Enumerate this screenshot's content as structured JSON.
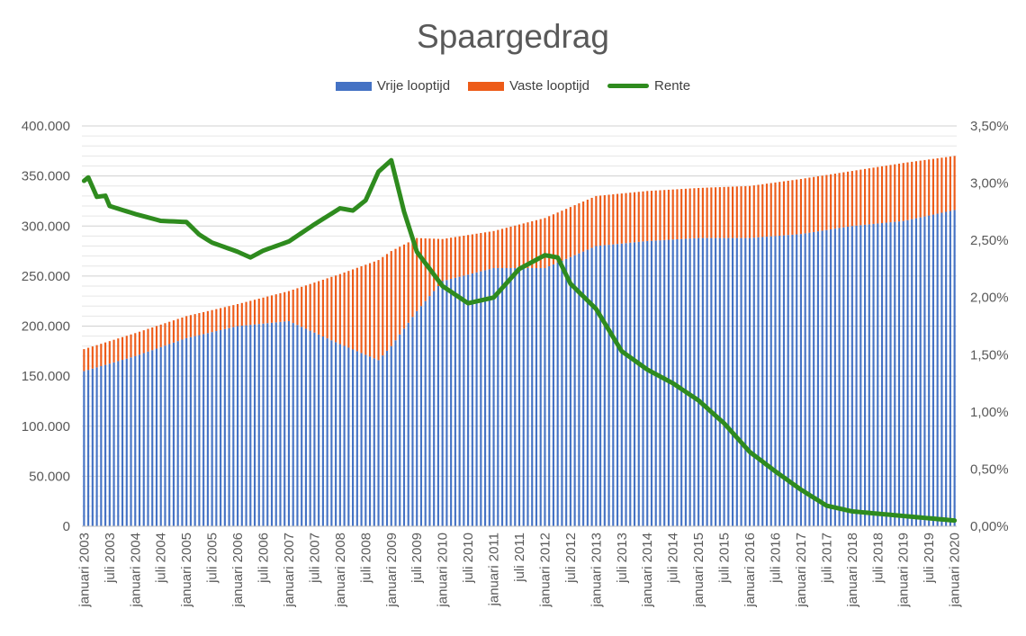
{
  "chart_data": {
    "type": "bar",
    "title": "Spaargedrag",
    "legend": {
      "position": "top",
      "items": [
        {
          "name": "Vrije looptijd",
          "color": "#4472c4",
          "kind": "bar"
        },
        {
          "name": "Vaste looptijd",
          "color": "#ed5b18",
          "kind": "bar"
        },
        {
          "name": "Rente",
          "color": "#2e8b1e",
          "kind": "line"
        }
      ]
    },
    "grid": true,
    "stacked": true,
    "y_left": {
      "ylim": [
        0,
        400000
      ],
      "ticks": [
        "0",
        "50.000",
        "100.000",
        "150.000",
        "200.000",
        "250.000",
        "300.000",
        "350.000",
        "400.000"
      ]
    },
    "y_right": {
      "ylim": [
        0,
        3.5
      ],
      "ticks": [
        "0,00%",
        "0,50%",
        "1,00%",
        "1,50%",
        "2,00%",
        "2,50%",
        "3,00%",
        "3,50%"
      ]
    },
    "x_start": "januari 2003",
    "x_end": "januari 2020",
    "x_tick_labels": [
      "januari 2003",
      "juli 2003",
      "januari 2004",
      "juli 2004",
      "januari 2005",
      "juli 2005",
      "januari 2006",
      "juli 2006",
      "januari 2007",
      "juli 2007",
      "januari 2008",
      "juli 2008",
      "januari 2009",
      "juli 2009",
      "januari 2010",
      "juli 2010",
      "januari 2011",
      "juli 2011",
      "januari 2012",
      "juli 2012",
      "januari 2013",
      "juli 2013",
      "januari 2014",
      "juli 2014",
      "januari 2015",
      "juli 2015",
      "januari 2016",
      "juli 2016",
      "januari 2017",
      "juli 2017",
      "januari 2018",
      "juli 2018",
      "januari 2019",
      "juli 2019",
      "januari 2020"
    ],
    "series": [
      {
        "name": "Vrije looptijd",
        "color": "#4472c4",
        "points": [
          {
            "x": "januari 2003",
            "y": 155000
          },
          {
            "x": "januari 2004",
            "y": 170000
          },
          {
            "x": "januari 2005",
            "y": 188000
          },
          {
            "x": "januari 2006",
            "y": 200000
          },
          {
            "x": "januari 2007",
            "y": 205000
          },
          {
            "x": "januari 2008",
            "y": 182000
          },
          {
            "x": "oktober 2008",
            "y": 166000
          },
          {
            "x": "januari 2009",
            "y": 180000
          },
          {
            "x": "juli 2009",
            "y": 215000
          },
          {
            "x": "januari 2010",
            "y": 245000
          },
          {
            "x": "januari 2011",
            "y": 258000
          },
          {
            "x": "januari 2012",
            "y": 258000
          },
          {
            "x": "januari 2013",
            "y": 280000
          },
          {
            "x": "januari 2014",
            "y": 285000
          },
          {
            "x": "januari 2015",
            "y": 288000
          },
          {
            "x": "januari 2016",
            "y": 288000
          },
          {
            "x": "januari 2017",
            "y": 292000
          },
          {
            "x": "januari 2018",
            "y": 300000
          },
          {
            "x": "januari 2019",
            "y": 305000
          },
          {
            "x": "januari 2020",
            "y": 316000
          }
        ]
      },
      {
        "name": "Vaste looptijd",
        "color": "#ed5b18",
        "points": [
          {
            "x": "januari 2003",
            "y": 22000
          },
          {
            "x": "januari 2004",
            "y": 23000
          },
          {
            "x": "januari 2005",
            "y": 22000
          },
          {
            "x": "januari 2006",
            "y": 22000
          },
          {
            "x": "januari 2007",
            "y": 30000
          },
          {
            "x": "januari 2008",
            "y": 70000
          },
          {
            "x": "oktober 2008",
            "y": 100000
          },
          {
            "x": "januari 2009",
            "y": 95000
          },
          {
            "x": "juli 2009",
            "y": 73000
          },
          {
            "x": "januari 2010",
            "y": 42000
          },
          {
            "x": "januari 2011",
            "y": 37000
          },
          {
            "x": "januari 2012",
            "y": 50000
          },
          {
            "x": "januari 2013",
            "y": 50000
          },
          {
            "x": "januari 2014",
            "y": 50000
          },
          {
            "x": "januari 2015",
            "y": 50000
          },
          {
            "x": "januari 2016",
            "y": 52000
          },
          {
            "x": "januari 2017",
            "y": 55000
          },
          {
            "x": "januari 2018",
            "y": 55000
          },
          {
            "x": "januari 2019",
            "y": 58000
          },
          {
            "x": "januari 2020",
            "y": 54000
          }
        ]
      },
      {
        "name": "Rente",
        "color": "#2e8b1e",
        "axis": "right",
        "points": [
          {
            "x": "januari 2003",
            "y": 3.02
          },
          {
            "x": "februari 2003",
            "y": 3.05
          },
          {
            "x": "april 2003",
            "y": 2.88
          },
          {
            "x": "juni 2003",
            "y": 2.89
          },
          {
            "x": "juli 2003",
            "y": 2.8
          },
          {
            "x": "januari 2004",
            "y": 2.73
          },
          {
            "x": "juli 2004",
            "y": 2.67
          },
          {
            "x": "januari 2005",
            "y": 2.66
          },
          {
            "x": "april 2005",
            "y": 2.55
          },
          {
            "x": "juli 2005",
            "y": 2.48
          },
          {
            "x": "januari 2006",
            "y": 2.4
          },
          {
            "x": "april 2006",
            "y": 2.35
          },
          {
            "x": "juli 2006",
            "y": 2.41
          },
          {
            "x": "januari 2007",
            "y": 2.49
          },
          {
            "x": "juli 2007",
            "y": 2.64
          },
          {
            "x": "januari 2008",
            "y": 2.78
          },
          {
            "x": "april 2008",
            "y": 2.76
          },
          {
            "x": "juli 2008",
            "y": 2.85
          },
          {
            "x": "oktober 2008",
            "y": 3.1
          },
          {
            "x": "januari 2009",
            "y": 3.2
          },
          {
            "x": "april 2009",
            "y": 2.75
          },
          {
            "x": "juli 2009",
            "y": 2.4
          },
          {
            "x": "januari 2010",
            "y": 2.1
          },
          {
            "x": "juli 2010",
            "y": 1.95
          },
          {
            "x": "januari 2011",
            "y": 2.0
          },
          {
            "x": "juli 2011",
            "y": 2.25
          },
          {
            "x": "januari 2012",
            "y": 2.37
          },
          {
            "x": "april 2012",
            "y": 2.35
          },
          {
            "x": "juli 2012",
            "y": 2.12
          },
          {
            "x": "januari 2013",
            "y": 1.9
          },
          {
            "x": "juli 2013",
            "y": 1.53
          },
          {
            "x": "januari 2014",
            "y": 1.37
          },
          {
            "x": "juli 2014",
            "y": 1.25
          },
          {
            "x": "januari 2015",
            "y": 1.1
          },
          {
            "x": "juli 2015",
            "y": 0.9
          },
          {
            "x": "januari 2016",
            "y": 0.65
          },
          {
            "x": "juli 2016",
            "y": 0.48
          },
          {
            "x": "januari 2017",
            "y": 0.32
          },
          {
            "x": "juli 2017",
            "y": 0.18
          },
          {
            "x": "januari 2018",
            "y": 0.13
          },
          {
            "x": "juli 2018",
            "y": 0.11
          },
          {
            "x": "januari 2019",
            "y": 0.09
          },
          {
            "x": "juli 2019",
            "y": 0.07
          },
          {
            "x": "januari 2020",
            "y": 0.05
          }
        ]
      }
    ]
  }
}
